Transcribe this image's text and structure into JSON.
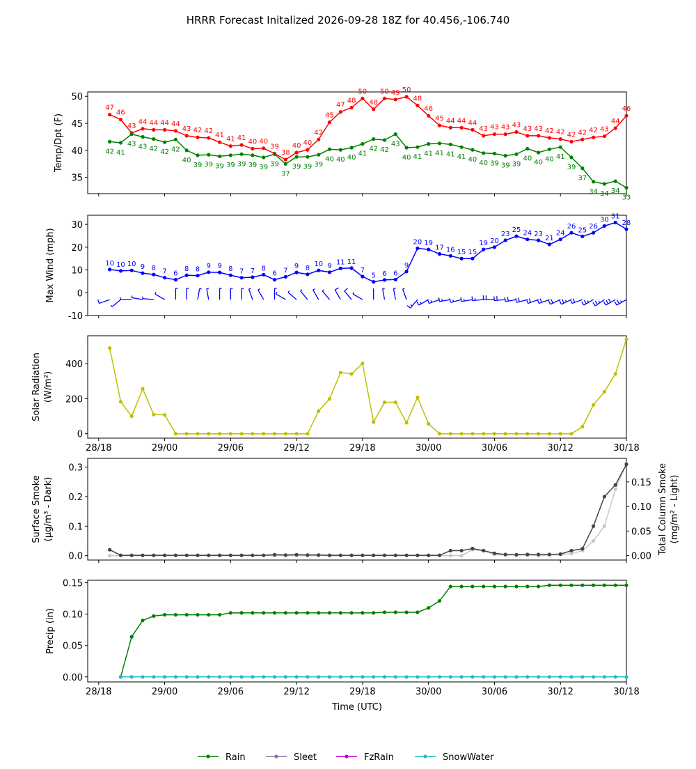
{
  "page": {
    "title": "HRRR Forecast Initalized 2026-09-28 18Z for 40.456,-106.740"
  },
  "colors": {
    "temp": "#ff0000",
    "dewpoint": "#008000",
    "wind": "#0000ff",
    "solar": "#bfbf00",
    "smoke_dark": "#444444",
    "smoke_light": "#c8c8c8",
    "rain": "#008000",
    "sleet": "#8a6fa0",
    "fzrain": "#c000c0",
    "snowwater": "#17becf"
  },
  "legend": {
    "position": "bottom-center",
    "items": [
      "Rain",
      "Sleet",
      "FzRain",
      "SnowWater"
    ]
  },
  "chart_data": [
    {
      "type": "line",
      "ylabel": "Temp/Dpt (F)",
      "ylim": [
        32,
        50.8
      ],
      "yticks": [
        35,
        40,
        45,
        50
      ],
      "x_hours_start": 0,
      "x_hours_end": 48,
      "series": [
        {
          "values": [
            46.6,
            45.7,
            43.2,
            44.0,
            43.8,
            43.8,
            43.6,
            42.7,
            42.4,
            42.3,
            41.5,
            40.8,
            41.0,
            40.3,
            40.4,
            39.4,
            38.3,
            39.6,
            40.1,
            42.0,
            45.2,
            47.1,
            47.9,
            49.6,
            47.6,
            49.6,
            49.4,
            49.9,
            48.3,
            46.4,
            44.6,
            44.2,
            44.2,
            43.8,
            42.7,
            43.0,
            43.0,
            43.4,
            42.7,
            42.7,
            42.3,
            42.1,
            41.6,
            42.0,
            42.4,
            42.6,
            44.1,
            46.4
          ],
          "labels": [
            47,
            46,
            43,
            44,
            44,
            44,
            44,
            43,
            42,
            42,
            41,
            41,
            41,
            40,
            40,
            39,
            38,
            40,
            40,
            42,
            45,
            47,
            48,
            50,
            48,
            50,
            49,
            50,
            48,
            46,
            45,
            44,
            44,
            44,
            43,
            43,
            43,
            43,
            43,
            43,
            42,
            42,
            42,
            42,
            42,
            43,
            44,
            46
          ]
        },
        {
          "values": [
            41.6,
            41.4,
            43.0,
            42.5,
            42.1,
            41.5,
            42.0,
            40.0,
            39.1,
            39.2,
            38.9,
            39.1,
            39.3,
            39.1,
            38.7,
            39.3,
            37.5,
            38.8,
            38.8,
            39.2,
            40.2,
            40.1,
            40.5,
            41.2,
            42.1,
            41.9,
            43.0,
            40.5,
            40.6,
            41.2,
            41.3,
            41.1,
            40.6,
            40.1,
            39.5,
            39.4,
            39.0,
            39.3,
            40.3,
            39.6,
            40.2,
            40.6,
            38.7,
            36.7,
            34.2,
            33.8,
            34.3,
            33.1
          ],
          "labels": [
            42,
            41,
            43,
            43,
            42,
            42,
            42,
            40,
            39,
            39,
            39,
            39,
            39,
            39,
            39,
            39,
            37,
            39,
            39,
            39,
            40,
            40,
            40,
            41,
            42,
            42,
            43,
            40,
            41,
            41,
            41,
            41,
            41,
            40,
            40,
            39,
            39,
            39,
            40,
            40,
            40,
            41,
            39,
            37,
            34,
            34,
            34,
            33
          ]
        }
      ]
    },
    {
      "type": "line",
      "ylabel": "Max Wind (mph)",
      "ylim": [
        -10,
        34
      ],
      "yticks": [
        -10,
        0,
        10,
        20,
        30
      ],
      "series": [
        {
          "values": [
            10.2,
            9.6,
            9.8,
            8.6,
            8.0,
            6.6,
            5.7,
            7.7,
            7.5,
            9.0,
            8.9,
            7.7,
            6.6,
            6.8,
            7.9,
            5.7,
            7.0,
            8.9,
            8.1,
            9.8,
            9.0,
            10.7,
            10.8,
            7.1,
            4.8,
            5.6,
            5.8,
            9.3,
            19.5,
            19.0,
            17.0,
            16.2,
            15.0,
            15.0,
            19.0,
            20.0,
            23.0,
            24.8,
            23.4,
            23.0,
            21.2,
            23.4,
            26.3,
            24.7,
            26.3,
            29.3,
            30.8,
            27.9
          ],
          "labels": [
            10,
            10,
            10,
            9,
            8,
            7,
            6,
            8,
            8,
            9,
            9,
            8,
            7,
            7,
            8,
            6,
            7,
            9,
            8,
            10,
            9,
            11,
            11,
            7,
            5,
            6,
            6,
            9,
            20,
            19,
            17,
            16,
            15,
            15,
            19,
            20,
            23,
            25,
            24,
            23,
            21,
            24,
            26,
            25,
            26,
            30,
            31,
            28
          ]
        }
      ],
      "barb_row_value": -3,
      "barb_dir_deg": [
        250,
        230,
        270,
        280,
        275,
        300,
        0,
        0,
        10,
        350,
        0,
        0,
        0,
        340,
        330,
        0,
        300,
        310,
        320,
        330,
        320,
        330,
        320,
        300,
        0,
        350,
        350,
        340,
        220,
        240,
        250,
        260,
        255,
        260,
        265,
        270,
        265,
        260,
        255,
        250,
        250,
        245,
        245,
        250,
        240,
        235,
        240,
        240
      ]
    },
    {
      "type": "line",
      "ylabel": "Solar Radiation (W/m²)",
      "ylim": [
        -25,
        560
      ],
      "yticks": [
        0,
        200,
        400
      ],
      "values": [
        490,
        183,
        100,
        257,
        110,
        108,
        0,
        0,
        0,
        0,
        0,
        0,
        0,
        0,
        0,
        0,
        0,
        0,
        0,
        130,
        200,
        350,
        342,
        402,
        67,
        180,
        180,
        63,
        208,
        57,
        0,
        0,
        0,
        0,
        0,
        0,
        0,
        0,
        0,
        0,
        0,
        0,
        0,
        40,
        165,
        240,
        342,
        540
      ]
    },
    {
      "type": "line",
      "ylabel_left": "Surface Smoke (μg/m³ - Dark)",
      "ylabel_right": "Total Column Smoke (mg/m² - Light)",
      "ylim_left": [
        -0.015,
        0.33
      ],
      "yticks_left": [
        0.0,
        0.1,
        0.2,
        0.3
      ],
      "ylim_right": [
        -0.009,
        0.198
      ],
      "yticks_right": [
        0.0,
        0.05,
        0.1,
        0.15
      ],
      "series": [
        {
          "axis": "left",
          "values": [
            0.02,
            0.001,
            0.001,
            0.001,
            0.001,
            0.001,
            0.001,
            0.001,
            0.001,
            0.001,
            0.001,
            0.001,
            0.001,
            0.001,
            0.001,
            0.003,
            0.002,
            0.003,
            0.002,
            0.002,
            0.001,
            0.001,
            0.001,
            0.001,
            0.001,
            0.001,
            0.001,
            0.001,
            0.001,
            0.001,
            0.001,
            0.017,
            0.017,
            0.024,
            0.017,
            0.008,
            0.004,
            0.003,
            0.004,
            0.004,
            0.004,
            0.005,
            0.017,
            0.023,
            0.1,
            0.2,
            0.24,
            0.31
          ]
        },
        {
          "axis": "right",
          "values": [
            0.0,
            0.0,
            0.0,
            0.0,
            0.0,
            0.0,
            0.0,
            0.0,
            0.0,
            0.0,
            0.0,
            0.0,
            0.0,
            0.0,
            0.0,
            0.0,
            0.0,
            0.0,
            0.0,
            0.0,
            0.0,
            0.0,
            0.0,
            0.0,
            0.0,
            0.0,
            0.0,
            0.0,
            0.0,
            0.0,
            0.0,
            0.0,
            0.0,
            0.012,
            0.01,
            0.002,
            0.001,
            0.001,
            0.001,
            0.0,
            0.001,
            0.002,
            0.004,
            0.01,
            0.03,
            0.06,
            0.135,
            0.187
          ]
        }
      ]
    },
    {
      "type": "line",
      "ylabel": "Precip (in)",
      "xlabel": "Time (UTC)",
      "ylim": [
        -0.008,
        0.154
      ],
      "yticks": [
        0.0,
        0.05,
        0.1,
        0.15
      ],
      "xticks": [
        "28/18",
        "29/00",
        "29/06",
        "29/12",
        "29/18",
        "30/00",
        "30/06",
        "30/12",
        "30/18"
      ],
      "series": [
        {
          "name": "Rain",
          "values": [
            null,
            0.0,
            0.064,
            0.09,
            0.097,
            0.099,
            0.099,
            0.099,
            0.099,
            0.099,
            0.099,
            0.102,
            0.102,
            0.102,
            0.102,
            0.102,
            0.102,
            0.102,
            0.102,
            0.102,
            0.102,
            0.102,
            0.102,
            0.102,
            0.102,
            0.103,
            0.103,
            0.103,
            0.103,
            0.11,
            0.121,
            0.144,
            0.144,
            0.144,
            0.144,
            0.144,
            0.144,
            0.144,
            0.144,
            0.144,
            0.146,
            0.146,
            0.146,
            0.146,
            0.146,
            0.146,
            0.146,
            0.146
          ]
        },
        {
          "name": "SnowWater",
          "values": [
            null,
            0.0,
            0.0,
            0.0,
            0.0,
            0.0,
            0.0,
            0.0,
            0.0,
            0.0,
            0.0,
            0.0,
            0.0,
            0.0,
            0.0,
            0.0,
            0.0,
            0.0,
            0.0,
            0.0,
            0.0,
            0.0,
            0.0,
            0.0,
            0.0,
            0.0,
            0.0,
            0.0,
            0.0,
            0.0,
            0.0,
            0.0,
            0.0,
            0.0,
            0.0,
            0.0,
            0.0,
            0.0,
            0.0,
            0.0,
            0.0,
            0.0,
            0.0,
            0.0,
            0.0,
            0.0,
            0.0,
            0.0
          ]
        }
      ]
    }
  ]
}
